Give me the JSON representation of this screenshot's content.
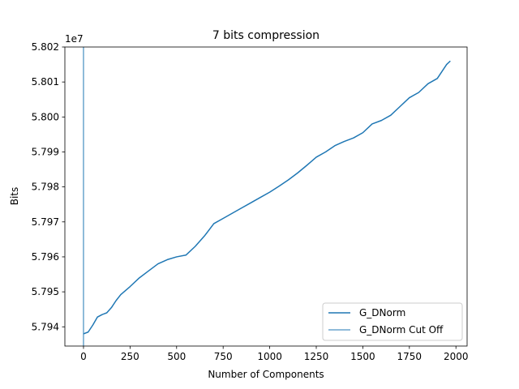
{
  "chart_data": {
    "type": "line",
    "title": "7 bits compression",
    "xlabel": "Number of Components",
    "ylabel": "Bits",
    "y_offset_label": "1e7",
    "xlim": [
      -100,
      2060
    ],
    "ylim": [
      5.79345,
      5.802
    ],
    "x_ticks": [
      0,
      250,
      500,
      750,
      1000,
      1250,
      1500,
      1750,
      2000
    ],
    "x_tick_labels": [
      "0",
      "250",
      "500",
      "750",
      "1000",
      "1250",
      "1500",
      "1750",
      "2000"
    ],
    "y_ticks": [
      5.794,
      5.795,
      5.796,
      5.797,
      5.798,
      5.799,
      5.8,
      5.801,
      5.802
    ],
    "y_tick_labels": [
      "5.794",
      "5.795",
      "5.796",
      "5.797",
      "5.798",
      "5.799",
      "5.800",
      "5.801",
      "5.802"
    ],
    "grid": false,
    "legend_position": "lower-right",
    "series": [
      {
        "name": "G_DNorm",
        "color": "#1f77b4",
        "x": [
          0,
          25,
          50,
          75,
          100,
          125,
          150,
          175,
          200,
          250,
          300,
          350,
          400,
          450,
          500,
          550,
          600,
          650,
          700,
          750,
          800,
          850,
          900,
          950,
          1000,
          1050,
          1100,
          1150,
          1200,
          1250,
          1300,
          1350,
          1400,
          1450,
          1500,
          1550,
          1600,
          1650,
          1700,
          1750,
          1800,
          1850,
          1900,
          1950,
          1970
        ],
        "y": [
          5.7938,
          5.79385,
          5.79405,
          5.79428,
          5.79435,
          5.7944,
          5.79455,
          5.79475,
          5.79492,
          5.79515,
          5.7954,
          5.7956,
          5.7958,
          5.79592,
          5.796,
          5.79605,
          5.7963,
          5.7966,
          5.79695,
          5.7971,
          5.79725,
          5.7974,
          5.79755,
          5.7977,
          5.79785,
          5.79802,
          5.7982,
          5.7984,
          5.79862,
          5.79885,
          5.799,
          5.79918,
          5.7993,
          5.7994,
          5.79955,
          5.7998,
          5.7999,
          5.80005,
          5.8003,
          5.80055,
          5.8007,
          5.80095,
          5.8011,
          5.8015,
          5.8016
        ]
      },
      {
        "name": "G_DNorm Cut Off",
        "color": "#1f77b4",
        "style": "vertical-line",
        "x": [
          0,
          0
        ],
        "y": [
          5.79345,
          5.802
        ]
      }
    ]
  }
}
